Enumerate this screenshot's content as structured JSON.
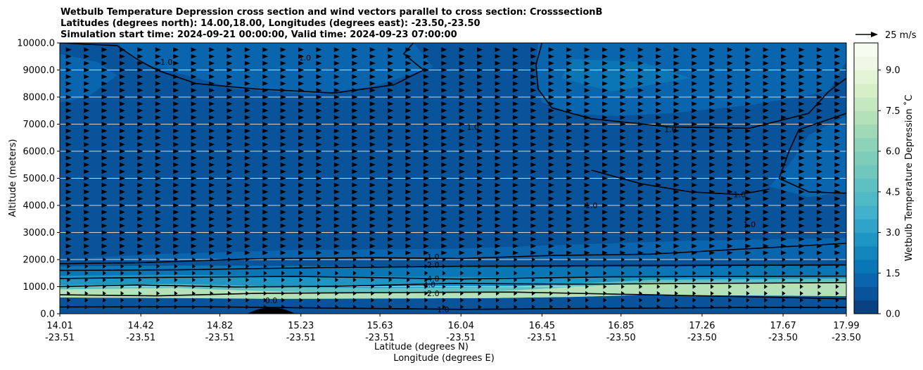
{
  "chart_data": {
    "type": "heatmap",
    "title_lines": [
      "Wetbulb Temperature Depression cross section and wind vectors parallel to cross section: CrosssectionB",
      "Latitudes (degrees north): 14.00,18.00, Longitudes (degrees east): -23.50,-23.50",
      "Simulation start time: 2024-09-21 00:00:00, Valid time: 2024-09-23 07:00:00"
    ],
    "ylabel": "Altitude (meters)",
    "xlabel_primary": "Latitude (degrees N)",
    "xlabel_secondary": "Longitude (degrees E)",
    "x_range": [
      14.01,
      17.99
    ],
    "ylim": [
      0,
      10000
    ],
    "x_ticks": [
      {
        "lat": "14.01",
        "lon": "-23.51",
        "value": 14.01
      },
      {
        "lat": "14.42",
        "lon": "-23.51",
        "value": 14.42
      },
      {
        "lat": "14.82",
        "lon": "-23.51",
        "value": 14.82
      },
      {
        "lat": "15.23",
        "lon": "-23.51",
        "value": 15.23
      },
      {
        "lat": "15.63",
        "lon": "-23.51",
        "value": 15.63
      },
      {
        "lat": "16.04",
        "lon": "-23.51",
        "value": 16.04
      },
      {
        "lat": "16.45",
        "lon": "-23.51",
        "value": 16.45
      },
      {
        "lat": "16.85",
        "lon": "-23.50",
        "value": 16.85
      },
      {
        "lat": "17.26",
        "lon": "-23.50",
        "value": 17.26
      },
      {
        "lat": "17.67",
        "lon": "-23.50",
        "value": 17.67
      },
      {
        "lat": "17.99",
        "lon": "-23.50",
        "value": 17.99
      }
    ],
    "y_ticks": [
      {
        "label": "0.0",
        "value": 0
      },
      {
        "label": "1000.0",
        "value": 1000
      },
      {
        "label": "2000.0",
        "value": 2000
      },
      {
        "label": "3000.0",
        "value": 3000
      },
      {
        "label": "4000.0",
        "value": 4000
      },
      {
        "label": "5000.0",
        "value": 5000
      },
      {
        "label": "6000.0",
        "value": 6000
      },
      {
        "label": "7000.0",
        "value": 7000
      },
      {
        "label": "8000.0",
        "value": 8000
      },
      {
        "label": "9000.0",
        "value": 9000
      },
      {
        "label": "10000.0",
        "value": 10000
      }
    ],
    "grid": "horizontal",
    "colorbar": {
      "label": "Wetbulb Temperature Depression ˚C",
      "range": [
        0,
        10
      ],
      "ticks": [
        {
          "label": "0.0",
          "value": 0
        },
        {
          "label": "1.5",
          "value": 1.5
        },
        {
          "label": "3.0",
          "value": 3
        },
        {
          "label": "4.5",
          "value": 4.5
        },
        {
          "label": "6.0",
          "value": 6
        },
        {
          "label": "7.5",
          "value": 7.5
        },
        {
          "label": "9.0",
          "value": 9
        }
      ],
      "colors": [
        "#084081",
        "#08539a",
        "#0865ae",
        "#0a76b6",
        "#1385bd",
        "#1f95c4",
        "#2fa3c9",
        "#41b1cc",
        "#4fb9c6",
        "#5ec0c1",
        "#6fc7bd",
        "#7ecdbb",
        "#8dd3b9",
        "#a0d9b6",
        "#b4e1b8",
        "#c6e8c0",
        "#d6efc9",
        "#e4f4d6",
        "#eef8e4",
        "#f7fcf0"
      ]
    },
    "wind_legend": {
      "label": "25 m/s",
      "speed": 25
    },
    "fields": {
      "background_value": 0.8,
      "upper_regions": [
        {
          "value": 1.3,
          "points": [
            [
              14.01,
              10000
            ],
            [
              14.3,
              10000
            ],
            [
              14.4,
              9300
            ],
            [
              14.6,
              8900
            ],
            [
              14.9,
              8300
            ],
            [
              15.3,
              8100
            ],
            [
              15.6,
              8400
            ],
            [
              15.9,
              9100
            ],
            [
              15.8,
              10000
            ],
            [
              17.99,
              10000
            ],
            [
              17.99,
              9300
            ],
            [
              17.9,
              8200
            ],
            [
              17.5,
              7700
            ],
            [
              17.1,
              7400
            ],
            [
              16.8,
              7300
            ],
            [
              16.6,
              7400
            ],
            [
              16.45,
              7800
            ],
            [
              16.42,
              9000
            ],
            [
              16.43,
              10000
            ],
            [
              14.01,
              10000
            ]
          ]
        },
        {
          "value": 1.3,
          "points": [
            [
              17.99,
              7300
            ],
            [
              17.8,
              6600
            ],
            [
              17.7,
              5500
            ],
            [
              17.6,
              4700
            ],
            [
              17.8,
              4300
            ],
            [
              17.99,
              4500
            ]
          ]
        },
        {
          "value": 1.3,
          "points": [
            [
              14.01,
              9600
            ],
            [
              14.2,
              9300
            ],
            [
              14.3,
              8800
            ],
            [
              14.15,
              8000
            ],
            [
              14.01,
              7800
            ]
          ]
        },
        {
          "value": 1.6,
          "points": [
            [
              16.6,
              9400
            ],
            [
              16.95,
              9300
            ],
            [
              17.2,
              8700
            ],
            [
              16.8,
              8200
            ],
            [
              16.55,
              8700
            ]
          ]
        },
        {
          "value": 1.3,
          "points": [
            [
              14.01,
              2000
            ],
            [
              14.5,
              2200
            ],
            [
              15.2,
              2350
            ],
            [
              16.0,
              2400
            ],
            [
              16.6,
              2550
            ],
            [
              17.2,
              2700
            ],
            [
              17.99,
              2800
            ],
            [
              17.99,
              2000
            ],
            [
              14.01,
              2000
            ]
          ]
        }
      ],
      "lower_layers": [
        {
          "value": 1.9,
          "alt_top": [
            [
              14.01,
              1750
            ],
            [
              14.6,
              1780
            ],
            [
              15.4,
              1760
            ],
            [
              16.2,
              1720
            ],
            [
              17.0,
              1740
            ],
            [
              17.99,
              1780
            ]
          ]
        },
        {
          "value": 2.9,
          "alt_top": [
            [
              14.01,
              1400
            ],
            [
              14.6,
              1430
            ],
            [
              15.4,
              1380
            ],
            [
              16.2,
              1350
            ],
            [
              17.0,
              1380
            ],
            [
              17.99,
              1420
            ]
          ]
        },
        {
          "value": 4.6,
          "alt_top": [
            [
              14.01,
              1050
            ],
            [
              14.6,
              1100
            ],
            [
              15.1,
              1000
            ],
            [
              15.6,
              950
            ],
            [
              16.2,
              980
            ],
            [
              16.6,
              1100
            ],
            [
              17.0,
              1250
            ],
            [
              17.99,
              1300
            ]
          ]
        },
        {
          "value": 7.3,
          "alt_top": [
            [
              14.01,
              900
            ],
            [
              14.6,
              950
            ],
            [
              15.1,
              820
            ],
            [
              15.6,
              760
            ],
            [
              16.2,
              820
            ],
            [
              16.6,
              980
            ],
            [
              17.0,
              1150
            ],
            [
              17.99,
              1180
            ]
          ]
        }
      ],
      "lower_layers_bottom": [
        [
          14.01,
          600
        ],
        [
          14.6,
          580
        ],
        [
          15.1,
          550
        ],
        [
          15.6,
          560
        ],
        [
          16.2,
          580
        ],
        [
          16.6,
          620
        ],
        [
          17.0,
          700
        ],
        [
          17.99,
          650
        ]
      ],
      "surface_layer": {
        "value": 0.5,
        "alt_top": [
          [
            14.01,
            500
          ],
          [
            15.0,
            420
          ],
          [
            16.0,
            350
          ],
          [
            17.0,
            300
          ],
          [
            17.99,
            250
          ]
        ]
      },
      "terrain_bump": {
        "x": 15.08,
        "height": 230,
        "half_width": 0.12
      }
    },
    "contours": [
      {
        "level": "1.0",
        "points": [
          [
            14.01,
            1850
          ],
          [
            14.4,
            1880
          ],
          [
            15.0,
            2030
          ],
          [
            15.6,
            2070
          ],
          [
            16.04,
            2040
          ],
          [
            16.5,
            2150
          ],
          [
            17.0,
            2200
          ],
          [
            17.5,
            2400
          ],
          [
            17.99,
            2600
          ]
        ]
      },
      {
        "level": "2.0",
        "points": [
          [
            14.01,
            1600
          ],
          [
            14.6,
            1620
          ],
          [
            15.3,
            1700
          ],
          [
            16.04,
            1750
          ],
          [
            16.8,
            1780
          ],
          [
            17.99,
            1800
          ]
        ]
      },
      {
        "level": "4.0",
        "points": [
          [
            14.01,
            1300
          ],
          [
            14.5,
            1340
          ],
          [
            15.2,
            1380
          ],
          [
            16.04,
            1280
          ],
          [
            16.8,
            1360
          ],
          [
            17.99,
            1390
          ]
        ]
      },
      {
        "level": "4.0",
        "points": [
          [
            14.01,
            1000
          ],
          [
            14.4,
            1060
          ],
          [
            14.9,
            990
          ],
          [
            15.4,
            1010
          ],
          [
            16.0,
            1120
          ],
          [
            16.6,
            1090
          ],
          [
            17.99,
            1150
          ]
        ]
      },
      {
        "level": "2.0",
        "points": [
          [
            14.01,
            700
          ],
          [
            14.5,
            660
          ],
          [
            15.0,
            750
          ],
          [
            15.6,
            780
          ],
          [
            16.3,
            800
          ],
          [
            17.0,
            700
          ],
          [
            17.99,
            550
          ]
        ]
      },
      {
        "level": "1.0",
        "points": [
          [
            14.01,
            250
          ],
          [
            14.7,
            260
          ],
          [
            15.5,
            200
          ],
          [
            16.04,
            160
          ],
          [
            16.8,
            200
          ],
          [
            17.5,
            230
          ],
          [
            17.99,
            230
          ]
        ]
      },
      {
        "level": "1.0",
        "points": [
          [
            14.01,
            10000
          ],
          [
            14.3,
            9900
          ],
          [
            14.4,
            9400
          ],
          [
            14.5,
            9000
          ],
          [
            14.7,
            8500
          ],
          [
            15.0,
            8300
          ],
          [
            15.4,
            8150
          ],
          [
            15.7,
            8450
          ],
          [
            15.85,
            9000
          ],
          [
            15.75,
            9600
          ],
          [
            15.8,
            10000
          ]
        ]
      },
      {
        "level": "1.0",
        "points": [
          [
            16.45,
            10000
          ],
          [
            16.42,
            9200
          ],
          [
            16.43,
            8300
          ],
          [
            16.5,
            7600
          ],
          [
            16.7,
            7200
          ],
          [
            17.1,
            6900
          ],
          [
            17.5,
            6850
          ],
          [
            17.8,
            7400
          ],
          [
            17.9,
            8200
          ],
          [
            17.99,
            8700
          ]
        ]
      },
      {
        "level": "1.0",
        "points": [
          [
            17.99,
            7400
          ],
          [
            17.75,
            6800
          ],
          [
            17.7,
            6000
          ],
          [
            17.65,
            5000
          ],
          [
            17.8,
            4500
          ],
          [
            17.99,
            4450
          ]
        ]
      },
      {
        "level": "1.0",
        "points": [
          [
            16.7,
            5300
          ],
          [
            16.95,
            4800
          ],
          [
            17.2,
            4500
          ],
          [
            17.45,
            4400
          ],
          [
            17.6,
            4600
          ]
        ]
      }
    ],
    "contour_labels": [
      {
        "text": "1.0",
        "x": 15.25,
        "alt": 9450
      },
      {
        "text": "1.0",
        "x": 14.55,
        "alt": 9300
      },
      {
        "text": "1.0",
        "x": 16.1,
        "alt": 6900
      },
      {
        "text": "1.0",
        "x": 17.1,
        "alt": 6800
      },
      {
        "text": "1.0",
        "x": 16.7,
        "alt": 4000
      },
      {
        "text": "1.0",
        "x": 17.45,
        "alt": 4400
      },
      {
        "text": "1.0",
        "x": 17.5,
        "alt": 3300
      },
      {
        "text": "1.0",
        "x": 15.9,
        "alt": 2100
      },
      {
        "text": "2.0",
        "x": 15.9,
        "alt": 1800
      },
      {
        "text": "4.0",
        "x": 15.9,
        "alt": 1300
      },
      {
        "text": "4.0",
        "x": 15.88,
        "alt": 1080
      },
      {
        "text": "2.0",
        "x": 15.9,
        "alt": 750
      },
      {
        "text": "0.0",
        "x": 15.08,
        "alt": 500
      },
      {
        "text": "1.0",
        "x": 15.95,
        "alt": 160
      }
    ],
    "wind_vectors": {
      "x_count": 44,
      "alt_start": 250,
      "alt_step": 250,
      "alt_count": 39,
      "u_upper": 5,
      "u_lower": 3
    }
  }
}
